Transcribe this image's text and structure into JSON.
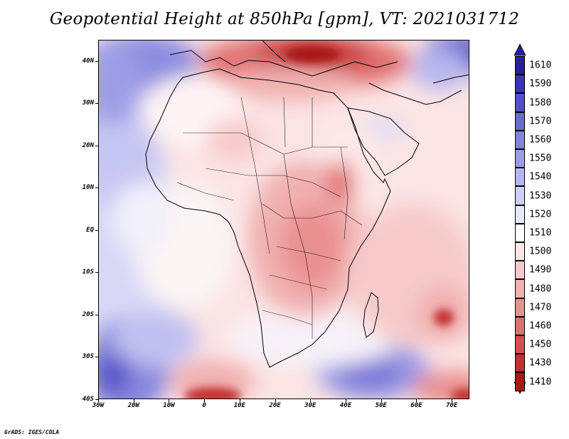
{
  "title": "Geopotential Height at 850hPa [gpm], VT: 2021031712",
  "footer": "GrADS: IGES/COLA",
  "map": {
    "lat_labels": [
      "40N",
      "30N",
      "20N",
      "10N",
      "EQ",
      "10S",
      "20S",
      "30S",
      "40S"
    ],
    "lat_values": [
      40,
      30,
      20,
      10,
      0,
      -10,
      -20,
      -30,
      -40
    ],
    "lon_labels": [
      "30W",
      "20W",
      "10W",
      "0",
      "10E",
      "20E",
      "30E",
      "40E",
      "50E",
      "60E",
      "70E"
    ],
    "lon_values": [
      -30,
      -20,
      -10,
      0,
      10,
      20,
      30,
      40,
      50,
      60,
      70
    ],
    "lon_range": [
      -30,
      75
    ],
    "lat_range": [
      -40,
      45
    ]
  },
  "colorbar": {
    "levels": [
      "1610",
      "1590",
      "1580",
      "1570",
      "1560",
      "1550",
      "1540",
      "1530",
      "1520",
      "1510",
      "1500",
      "1490",
      "1480",
      "1470",
      "1460",
      "1450",
      "1430",
      "1410"
    ],
    "colors": [
      "#2a1f9a",
      "#3a34b8",
      "#5150c8",
      "#6a6ad4",
      "#8383dd",
      "#9d9de6",
      "#b6b6ee",
      "#cfcff5",
      "#e8e8fb",
      "#ffffff",
      "#fbe4e4",
      "#f6caca",
      "#f0b0b0",
      "#e99090",
      "#e07070",
      "#d45050",
      "#c33030",
      "#a81818"
    ],
    "top_arrow_color": "#2a1f9a",
    "bottom_arrow_color": "#a81818"
  }
}
